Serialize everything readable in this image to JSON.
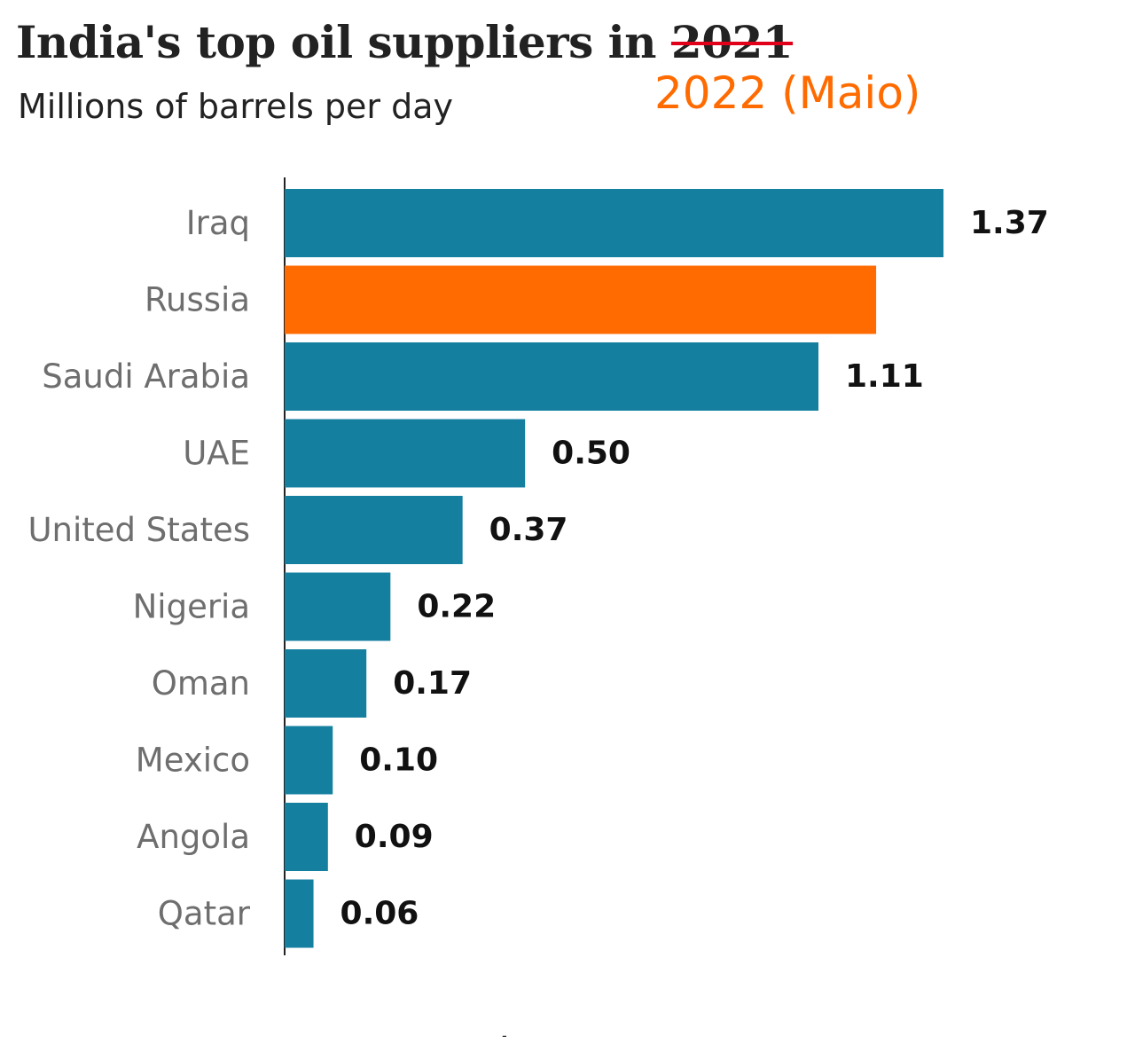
{
  "header": {
    "title_prefix": "India's top oil suppliers in",
    "old_year": "2021",
    "new_year": "2022 (Maio)",
    "subtitle": "Millions of barrels per day"
  },
  "footer": {
    "mark": "-"
  },
  "colors": {
    "bar": "#157fa0",
    "highlight": "#ff6b00",
    "strike": "#e0001a",
    "text": "#222222",
    "axis": "#222222"
  },
  "chart_data": {
    "type": "bar",
    "orientation": "horizontal",
    "title": "India's top oil suppliers in 2022 (Maio)",
    "ylabel": "Millions of barrels per day",
    "categories": [
      "Iraq",
      "Russia",
      "Saudi Arabia",
      "UAE",
      "United States",
      "Nigeria",
      "Oman",
      "Mexico",
      "Angola",
      "Qatar"
    ],
    "values": [
      1.37,
      1.23,
      1.11,
      0.5,
      0.37,
      0.22,
      0.17,
      0.1,
      0.09,
      0.06
    ],
    "value_labels": [
      "1.37",
      "",
      "1.11",
      "0.50",
      "0.37",
      "0.22",
      "0.17",
      "0.10",
      "0.09",
      "0.06"
    ],
    "highlight": "Russia",
    "xlim": [
      0,
      1.37
    ],
    "grid": false
  }
}
